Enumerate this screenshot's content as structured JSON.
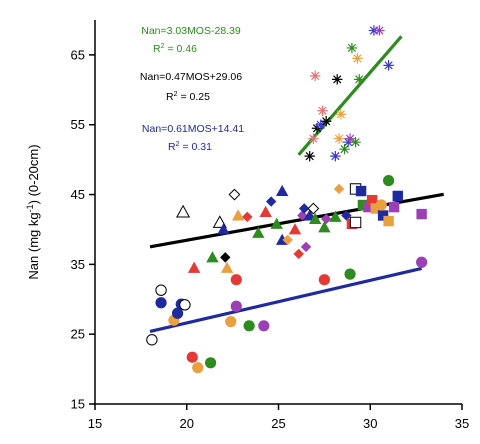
{
  "chart_data": {
    "type": "scatter",
    "ylabel_main": "Nan (mg kg",
    "ylabel_sup": "-1",
    "ylabel_tail": ") (0-20cm)",
    "xlim": [
      15,
      35
    ],
    "ylim": [
      15,
      70
    ],
    "x_ticks": [
      15,
      20,
      25,
      30,
      35
    ],
    "y_ticks": [
      15,
      25,
      35,
      45,
      55,
      65
    ],
    "grid": false,
    "annotations": [
      {
        "id": "green",
        "equation": "Nan=3.03MOS-28.39",
        "r2_label": "R",
        "r2_exp": "2",
        "r2_value": " = 0.46",
        "color": "#2e8b1f"
      },
      {
        "id": "black",
        "equation": "Nan=0.47MOS+29.06",
        "r2_label": "R",
        "r2_exp": "2",
        "r2_value": " = 0.25",
        "color": "#000000"
      },
      {
        "id": "blue",
        "equation": "Nan=0.61MOS+14.41",
        "r2_label": "R",
        "r2_exp": "2",
        "r2_value": " = 0.31",
        "color": "#1f2a9e"
      }
    ],
    "series": [
      {
        "group": "stars",
        "fit_color": "#2e8b1f",
        "fit_x": [
          26.1,
          31.7
        ],
        "fit_slope": 3.03,
        "fit_intercept": -28.39,
        "points": [
          {
            "x": 26.7,
            "y": 50.5,
            "color": "#000000"
          },
          {
            "x": 26.9,
            "y": 53.0,
            "color": "#e57373"
          },
          {
            "x": 27.1,
            "y": 54.5,
            "color": "#000000"
          },
          {
            "x": 27.3,
            "y": 55.0,
            "color": "#3b3bd6"
          },
          {
            "x": 27.0,
            "y": 62.0,
            "color": "#e57373"
          },
          {
            "x": 27.4,
            "y": 57.0,
            "color": "#e57373"
          },
          {
            "x": 27.6,
            "y": 55.5,
            "color": "#000000"
          },
          {
            "x": 28.2,
            "y": 61.5,
            "color": "#000000"
          },
          {
            "x": 28.1,
            "y": 50.5,
            "color": "#3b3bd6"
          },
          {
            "x": 28.3,
            "y": 53.0,
            "color": "#e9a040"
          },
          {
            "x": 28.4,
            "y": 56.5,
            "color": "#e9a040"
          },
          {
            "x": 28.6,
            "y": 51.5,
            "color": "#2e8b1f"
          },
          {
            "x": 28.8,
            "y": 52.5,
            "color": "#3b3bd6"
          },
          {
            "x": 28.9,
            "y": 53.0,
            "color": "#9b3fb5"
          },
          {
            "x": 29.0,
            "y": 66.0,
            "color": "#2e8b1f"
          },
          {
            "x": 29.2,
            "y": 52.5,
            "color": "#2e8b1f"
          },
          {
            "x": 29.3,
            "y": 64.5,
            "color": "#e9a040"
          },
          {
            "x": 29.4,
            "y": 61.5,
            "color": "#2e8b1f"
          },
          {
            "x": 30.2,
            "y": 68.5,
            "color": "#3b3bd6"
          },
          {
            "x": 30.5,
            "y": 68.5,
            "color": "#9b3fb5"
          },
          {
            "x": 31.0,
            "y": 63.5,
            "color": "#3b3bd6"
          }
        ]
      },
      {
        "group": "squares-diamonds-triangles",
        "fit_color": "#000000",
        "fit_x": [
          18.0,
          34.0
        ],
        "fit_slope": 0.47,
        "fit_intercept": 29.06,
        "points": [
          {
            "x": 19.8,
            "y": 42.5,
            "shape": "triangle-open",
            "color": "#000000"
          },
          {
            "x": 21.8,
            "y": 41.0,
            "shape": "triangle-open",
            "color": "#000000"
          },
          {
            "x": 22.6,
            "y": 45.0,
            "shape": "diamond-open",
            "color": "#000000"
          },
          {
            "x": 20.4,
            "y": 34.5,
            "shape": "triangle",
            "color": "#e53935"
          },
          {
            "x": 21.4,
            "y": 36.0,
            "shape": "triangle",
            "color": "#2e8b1f"
          },
          {
            "x": 22.1,
            "y": 36.0,
            "shape": "diamond",
            "color": "#000000"
          },
          {
            "x": 22.0,
            "y": 40.0,
            "shape": "triangle",
            "color": "#1f2a9e"
          },
          {
            "x": 22.2,
            "y": 34.5,
            "shape": "triangle",
            "color": "#e9a040"
          },
          {
            "x": 22.8,
            "y": 42.0,
            "shape": "triangle",
            "color": "#e9a040"
          },
          {
            "x": 23.3,
            "y": 41.8,
            "shape": "diamond",
            "color": "#e53935"
          },
          {
            "x": 23.9,
            "y": 39.5,
            "shape": "triangle",
            "color": "#2e8b1f"
          },
          {
            "x": 24.3,
            "y": 42.5,
            "shape": "triangle",
            "color": "#e53935"
          },
          {
            "x": 24.6,
            "y": 44.0,
            "shape": "diamond",
            "color": "#1f2a9e"
          },
          {
            "x": 24.9,
            "y": 40.8,
            "shape": "triangle",
            "color": "#2e8b1f"
          },
          {
            "x": 25.2,
            "y": 45.5,
            "shape": "triangle",
            "color": "#1f2a9e"
          },
          {
            "x": 25.2,
            "y": 38.5,
            "shape": "triangle",
            "color": "#1f2a9e"
          },
          {
            "x": 25.5,
            "y": 38.5,
            "shape": "diamond",
            "color": "#e9a040"
          },
          {
            "x": 25.9,
            "y": 40.0,
            "shape": "triangle",
            "color": "#e53935"
          },
          {
            "x": 26.1,
            "y": 36.5,
            "shape": "diamond",
            "color": "#e53935"
          },
          {
            "x": 26.3,
            "y": 42.0,
            "shape": "diamond",
            "color": "#9b3fb5"
          },
          {
            "x": 26.4,
            "y": 43.0,
            "shape": "diamond",
            "color": "#1f2a9e"
          },
          {
            "x": 26.5,
            "y": 37.5,
            "shape": "diamond",
            "color": "#9b3fb5"
          },
          {
            "x": 26.7,
            "y": 42.0,
            "shape": "triangle",
            "color": "#1f2a9e"
          },
          {
            "x": 26.9,
            "y": 43.0,
            "shape": "diamond-open",
            "color": "#000000"
          },
          {
            "x": 27.0,
            "y": 41.5,
            "shape": "triangle",
            "color": "#2e8b1f"
          },
          {
            "x": 27.5,
            "y": 40.3,
            "shape": "triangle",
            "color": "#2e8b1f"
          },
          {
            "x": 27.6,
            "y": 41.5,
            "shape": "diamond",
            "color": "#9b3fb5"
          },
          {
            "x": 28.1,
            "y": 41.8,
            "shape": "triangle",
            "color": "#2e8b1f"
          },
          {
            "x": 28.3,
            "y": 45.8,
            "shape": "diamond",
            "color": "#e9a040"
          },
          {
            "x": 28.7,
            "y": 42.0,
            "shape": "diamond",
            "color": "#1f2a9e"
          },
          {
            "x": 29.0,
            "y": 40.8,
            "shape": "square",
            "color": "#e53935"
          },
          {
            "x": 29.2,
            "y": 41.0,
            "shape": "square-open",
            "color": "#000000"
          },
          {
            "x": 29.2,
            "y": 45.8,
            "shape": "square-open",
            "color": "#000000"
          },
          {
            "x": 29.5,
            "y": 45.5,
            "shape": "square",
            "color": "#1f2a9e"
          },
          {
            "x": 29.6,
            "y": 43.5,
            "shape": "square",
            "color": "#2e8b1f"
          },
          {
            "x": 29.9,
            "y": 43.2,
            "shape": "square",
            "color": "#9b3fb5"
          },
          {
            "x": 30.1,
            "y": 44.2,
            "shape": "square",
            "color": "#e53935"
          },
          {
            "x": 30.3,
            "y": 43.0,
            "shape": "square",
            "color": "#e9a040"
          },
          {
            "x": 30.7,
            "y": 42.0,
            "shape": "square",
            "color": "#1f2a9e"
          },
          {
            "x": 31.0,
            "y": 41.2,
            "shape": "square",
            "color": "#e9a040"
          },
          {
            "x": 31.3,
            "y": 43.2,
            "shape": "square",
            "color": "#9b3fb5"
          },
          {
            "x": 31.5,
            "y": 44.8,
            "shape": "square",
            "color": "#1f2a9e"
          },
          {
            "x": 32.8,
            "y": 42.2,
            "shape": "square",
            "color": "#9b3fb5"
          },
          {
            "x": 30.6,
            "y": 43.5,
            "shape": "circle",
            "color": "#e9a040"
          },
          {
            "x": 31.0,
            "y": 47.0,
            "shape": "circle",
            "color": "#2e8b1f"
          }
        ]
      },
      {
        "group": "circles",
        "fit_color": "#1f2a9e",
        "fit_x": [
          18.0,
          32.8
        ],
        "fit_slope": 0.61,
        "fit_intercept": 14.41,
        "points": [
          {
            "x": 18.1,
            "y": 24.2,
            "shape": "circle-open",
            "color": "#000000"
          },
          {
            "x": 18.6,
            "y": 31.3,
            "shape": "circle-open",
            "color": "#000000"
          },
          {
            "x": 18.6,
            "y": 29.5,
            "shape": "circle",
            "color": "#1f2a9e"
          },
          {
            "x": 19.3,
            "y": 27.0,
            "shape": "circle",
            "color": "#e9a040"
          },
          {
            "x": 19.5,
            "y": 28.0,
            "shape": "circle",
            "color": "#1f2a9e"
          },
          {
            "x": 19.7,
            "y": 29.3,
            "shape": "circle",
            "color": "#1f2a9e"
          },
          {
            "x": 19.9,
            "y": 29.2,
            "shape": "circle-open",
            "color": "#000000"
          },
          {
            "x": 20.3,
            "y": 21.7,
            "shape": "circle",
            "color": "#e53935"
          },
          {
            "x": 20.6,
            "y": 20.2,
            "shape": "circle",
            "color": "#e9a040"
          },
          {
            "x": 21.3,
            "y": 20.9,
            "shape": "circle",
            "color": "#2e8b1f"
          },
          {
            "x": 22.4,
            "y": 26.8,
            "shape": "circle",
            "color": "#e9a040"
          },
          {
            "x": 22.7,
            "y": 32.8,
            "shape": "circle",
            "color": "#e53935"
          },
          {
            "x": 22.7,
            "y": 29.0,
            "shape": "circle",
            "color": "#9b3fb5"
          },
          {
            "x": 23.4,
            "y": 26.2,
            "shape": "circle",
            "color": "#2e8b1f"
          },
          {
            "x": 24.2,
            "y": 26.2,
            "shape": "circle",
            "color": "#9b3fb5"
          },
          {
            "x": 27.5,
            "y": 32.8,
            "shape": "circle",
            "color": "#e53935"
          },
          {
            "x": 28.9,
            "y": 33.6,
            "shape": "circle",
            "color": "#2e8b1f"
          },
          {
            "x": 32.8,
            "y": 35.3,
            "shape": "circle",
            "color": "#9b3fb5"
          }
        ]
      }
    ]
  }
}
